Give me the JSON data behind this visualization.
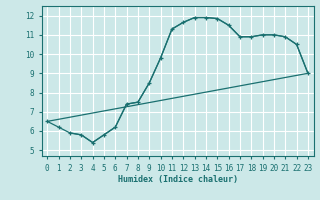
{
  "xlabel": "Humidex (Indice chaleur)",
  "bg_color": "#cce8e8",
  "grid_color": "#ffffff",
  "line_color": "#1a7070",
  "xlim": [
    -0.5,
    23.5
  ],
  "ylim": [
    4.7,
    12.5
  ],
  "xticks": [
    0,
    1,
    2,
    3,
    4,
    5,
    6,
    7,
    8,
    9,
    10,
    11,
    12,
    13,
    14,
    15,
    16,
    17,
    18,
    19,
    20,
    21,
    22,
    23
  ],
  "yticks": [
    5,
    6,
    7,
    8,
    9,
    10,
    11,
    12
  ],
  "curve1_x": [
    0,
    1,
    2,
    3,
    4,
    5,
    6,
    7,
    8,
    9,
    10,
    11,
    12,
    13,
    14,
    15,
    16,
    17,
    18,
    19,
    20,
    21,
    22,
    23
  ],
  "curve1_y": [
    6.5,
    6.2,
    5.9,
    5.8,
    5.4,
    5.8,
    6.2,
    7.4,
    7.5,
    8.5,
    9.8,
    11.3,
    11.65,
    11.9,
    11.9,
    11.85,
    11.5,
    10.9,
    10.9,
    11.0,
    11.0,
    10.9,
    10.5,
    9.0
  ],
  "curve2_x": [
    0,
    23
  ],
  "curve2_y": [
    6.5,
    9.0
  ],
  "curve3_x": [
    2,
    3,
    4,
    5,
    6,
    7,
    8,
    9,
    10,
    11,
    12,
    13,
    14,
    15,
    16,
    17,
    18,
    19,
    20,
    21,
    22,
    23
  ],
  "curve3_y": [
    5.9,
    5.8,
    5.4,
    5.8,
    6.2,
    7.4,
    7.5,
    8.5,
    9.8,
    11.3,
    11.65,
    11.9,
    11.9,
    11.85,
    11.5,
    10.9,
    10.9,
    11.0,
    11.0,
    10.9,
    10.5,
    9.0
  ]
}
